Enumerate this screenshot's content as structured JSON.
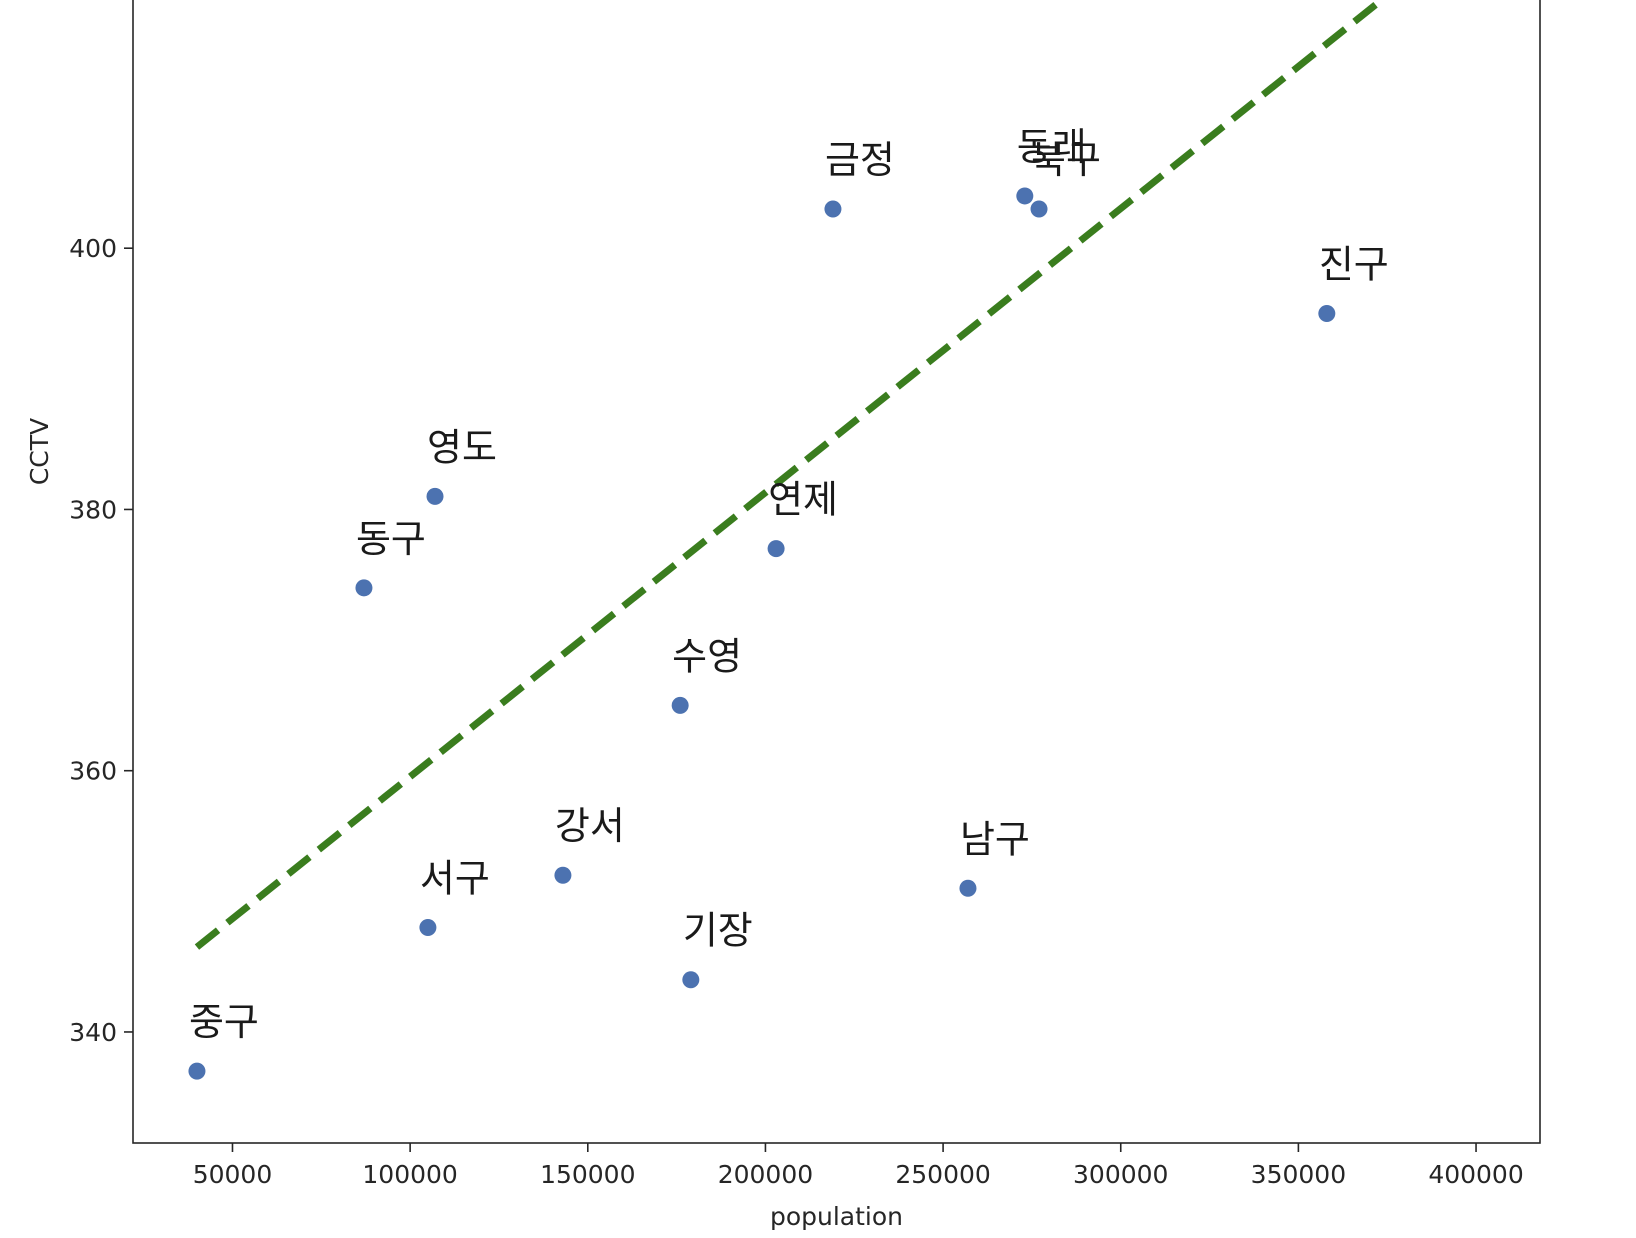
{
  "chart_data": {
    "type": "scatter",
    "title": "",
    "xlabel": "population",
    "ylabel": "CCTV",
    "xlim": [
      22000,
      418000
    ],
    "ylim": [
      331.5,
      419
    ],
    "xticks": [
      50000,
      100000,
      150000,
      200000,
      250000,
      300000,
      350000,
      400000
    ],
    "yticks": [
      340,
      360,
      380,
      400
    ],
    "grid": false,
    "point_color": "#4c72b0",
    "trendline": {
      "style": "dashed",
      "color": "#3a7d1e",
      "points": [
        [
          40000,
          346.5
        ],
        [
          378000,
          420
        ]
      ]
    },
    "points": [
      {
        "label": "중구",
        "x": 40000,
        "y": 337
      },
      {
        "label": "동구",
        "x": 87000,
        "y": 374
      },
      {
        "label": "영도",
        "x": 107000,
        "y": 381
      },
      {
        "label": "서구",
        "x": 105000,
        "y": 348
      },
      {
        "label": "강서",
        "x": 143000,
        "y": 352
      },
      {
        "label": "수영",
        "x": 176000,
        "y": 365
      },
      {
        "label": "기장",
        "x": 179000,
        "y": 344
      },
      {
        "label": "연제",
        "x": 203000,
        "y": 377
      },
      {
        "label": "금정",
        "x": 219000,
        "y": 403
      },
      {
        "label": "남구",
        "x": 257000,
        "y": 351
      },
      {
        "label": "동래",
        "x": 273000,
        "y": 404
      },
      {
        "label": "북구",
        "x": 277000,
        "y": 403
      },
      {
        "label": "진구",
        "x": 358000,
        "y": 395
      }
    ]
  }
}
